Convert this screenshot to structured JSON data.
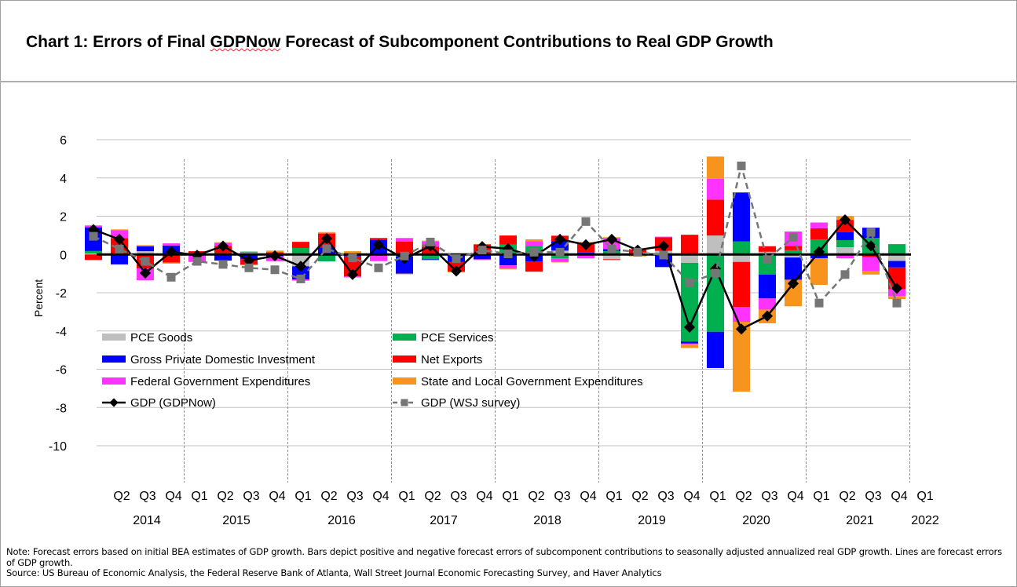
{
  "title": {
    "prefix": "Chart 1: Errors of Final ",
    "underlined": "GDPNow",
    "suffix": " Forecast of Subcomponent Contributions to Real GDP Growth"
  },
  "notes": {
    "note": "Note: Forecast errors based on initial BEA estimates of GDP growth. Bars depict positive and negative forecast errors of subcomponent contributions to seasonally adjusted annualized real GDP growth. Lines are forecast errors of GDP growth.",
    "source": "Source: US Bureau of Economic Analysis, the Federal Reserve Bank of Atlanta, Wall Street Journal Economic Forecasting Survey, and Haver Analytics"
  },
  "chart_data": {
    "type": "bar",
    "stacked": true,
    "ylabel": "Percent",
    "ylim": [
      -10,
      6
    ],
    "yticks": [
      6,
      4,
      2,
      0,
      -2,
      -4,
      -6,
      -8,
      -10
    ],
    "grid": true,
    "legend_placement": "lower-left inside plot",
    "categories": [
      "2014Q1",
      "2014Q2",
      "2014Q3",
      "2014Q4",
      "2015Q1",
      "2015Q2",
      "2015Q3",
      "2015Q4",
      "2016Q1",
      "2016Q2",
      "2016Q3",
      "2016Q4",
      "2017Q1",
      "2017Q2",
      "2017Q3",
      "2017Q4",
      "2018Q1",
      "2018Q2",
      "2018Q3",
      "2018Q4",
      "2019Q1",
      "2019Q2",
      "2019Q3",
      "2019Q4",
      "2020Q1",
      "2020Q2",
      "2020Q3",
      "2020Q4",
      "2021Q1",
      "2021Q2",
      "2021Q3",
      "2021Q4"
    ],
    "quarter_tick_labels": [
      "Q2",
      "Q3",
      "Q4",
      "Q1",
      "Q2",
      "Q3",
      "Q4",
      "Q1",
      "Q2",
      "Q3",
      "Q4",
      "Q1",
      "Q2",
      "Q3",
      "Q4",
      "Q1",
      "Q2",
      "Q3",
      "Q4",
      "Q1",
      "Q2",
      "Q3",
      "Q4",
      "Q1",
      "Q2",
      "Q3",
      "Q4",
      "Q1",
      "Q2",
      "Q3",
      "Q4",
      "Q1"
    ],
    "year_tick_labels": [
      "2014",
      "2015",
      "2016",
      "2017",
      "2018",
      "2019",
      "2020",
      "2021",
      "2022"
    ],
    "series": [
      {
        "name": "PCE Goods",
        "color": "#bfbfbf",
        "kind": "bar",
        "values": [
          0.05,
          0,
          0.17,
          0,
          0,
          0,
          0.1,
          0,
          -0.62,
          0,
          0.05,
          0,
          0,
          0,
          0,
          0,
          0,
          0,
          0.2,
          0,
          -0.25,
          0,
          0.19,
          -0.44,
          0.99,
          -0.39,
          0.14,
          -0.16,
          0,
          0.38,
          0,
          -0.34
        ]
      },
      {
        "name": "PCE Services",
        "color": "#00b050",
        "kind": "bar",
        "values": [
          0.13,
          0,
          0,
          0,
          0.07,
          0.07,
          0.05,
          0,
          0.34,
          -0.36,
          0,
          0.05,
          -0.1,
          -0.25,
          0,
          0,
          0.51,
          0.44,
          -0.2,
          0,
          0.17,
          0,
          0,
          -4.11,
          -4.04,
          0.68,
          -1.05,
          0.22,
          0.79,
          0.37,
          0.86,
          0.54
        ]
      },
      {
        "name": "Gross Private Domestic Investment",
        "color": "#0000ff",
        "kind": "bar",
        "values": [
          1.24,
          -0.52,
          0.25,
          0.47,
          0,
          -0.32,
          -0.25,
          -0.1,
          -0.68,
          0.37,
          -0.1,
          0.7,
          -0.9,
          -0.04,
          -0.38,
          -0.25,
          -0.57,
          -0.36,
          0.5,
          0.1,
          0.11,
          0,
          -0.66,
          -0.11,
          -1.9,
          2.56,
          -1.25,
          -1.16,
          -0.2,
          0.41,
          0.54,
          -0.34
        ]
      },
      {
        "name": "Net Exports",
        "color": "#ff0000",
        "kind": "bar",
        "values": [
          -0.29,
          0.85,
          -0.73,
          -0.43,
          0.1,
          0.38,
          -0.28,
          0.12,
          0.32,
          0.72,
          -1.05,
          0.11,
          0.68,
          0.4,
          -0.52,
          0.52,
          0.48,
          -0.54,
          0.28,
          0.51,
          -0.04,
          0.28,
          0.7,
          1.03,
          1.88,
          -2.35,
          0.29,
          0.23,
          0.58,
          0.65,
          -0.14,
          -1.14
        ]
      },
      {
        "name": "Federal Government Expenditures",
        "color": "#ff33ff",
        "kind": "bar",
        "values": [
          0.08,
          0.41,
          -0.62,
          0.11,
          -0.39,
          0.15,
          0,
          -0.25,
          -0.05,
          0.04,
          -0.05,
          -0.35,
          0.18,
          0.28,
          0.03,
          -0.04,
          -0.17,
          0.25,
          -0.18,
          -0.2,
          0.58,
          0,
          0.04,
          -0.04,
          1.09,
          -0.78,
          -0.58,
          0.75,
          0.3,
          -0.2,
          -0.73,
          -0.35
        ]
      },
      {
        "name": "State and Local Government Expenditures",
        "color": "#f7941d",
        "kind": "bar",
        "values": [
          0.03,
          0.05,
          0.07,
          -0.05,
          0,
          0.04,
          -0.04,
          0.08,
          -0.03,
          0.04,
          0.12,
          0,
          -0.04,
          0.04,
          -0.04,
          0.03,
          -0.04,
          0.1,
          -0.04,
          0.04,
          0.04,
          -0.1,
          0,
          -0.19,
          1.16,
          -3.65,
          -0.72,
          -1.39,
          -1.39,
          0.2,
          -0.18,
          -0.16
        ]
      },
      {
        "name": "GDP (GDPNow)",
        "color": "#000000",
        "kind": "line",
        "marker": "diamond",
        "values": [
          1.3,
          0.79,
          -0.97,
          0.14,
          -0.04,
          0.44,
          -0.32,
          -0.07,
          -0.62,
          0.83,
          -1.05,
          0.51,
          -0.22,
          0.44,
          -0.87,
          0.41,
          0.3,
          -0.11,
          0.79,
          0.51,
          0.79,
          0.23,
          0.44,
          -3.8,
          -0.75,
          -3.9,
          -3.22,
          -1.52,
          0.14,
          1.81,
          0.45,
          -1.77
        ]
      },
      {
        "name": "GDP (WSJ survey)",
        "color": "#767676",
        "kind": "line",
        "dash": true,
        "marker": "square",
        "values": [
          0.95,
          0.28,
          -0.36,
          -1.19,
          -0.36,
          -0.52,
          -0.7,
          -0.8,
          -1.28,
          0.3,
          -0.18,
          -0.7,
          -0.08,
          0.65,
          -0.22,
          0.23,
          0.03,
          0.12,
          0.12,
          1.72,
          0.28,
          0.12,
          -0.03,
          -1.48,
          -0.98,
          4.63,
          -0.27,
          0.9,
          -2.54,
          -1.05,
          1.16,
          -2.54
        ]
      }
    ]
  }
}
